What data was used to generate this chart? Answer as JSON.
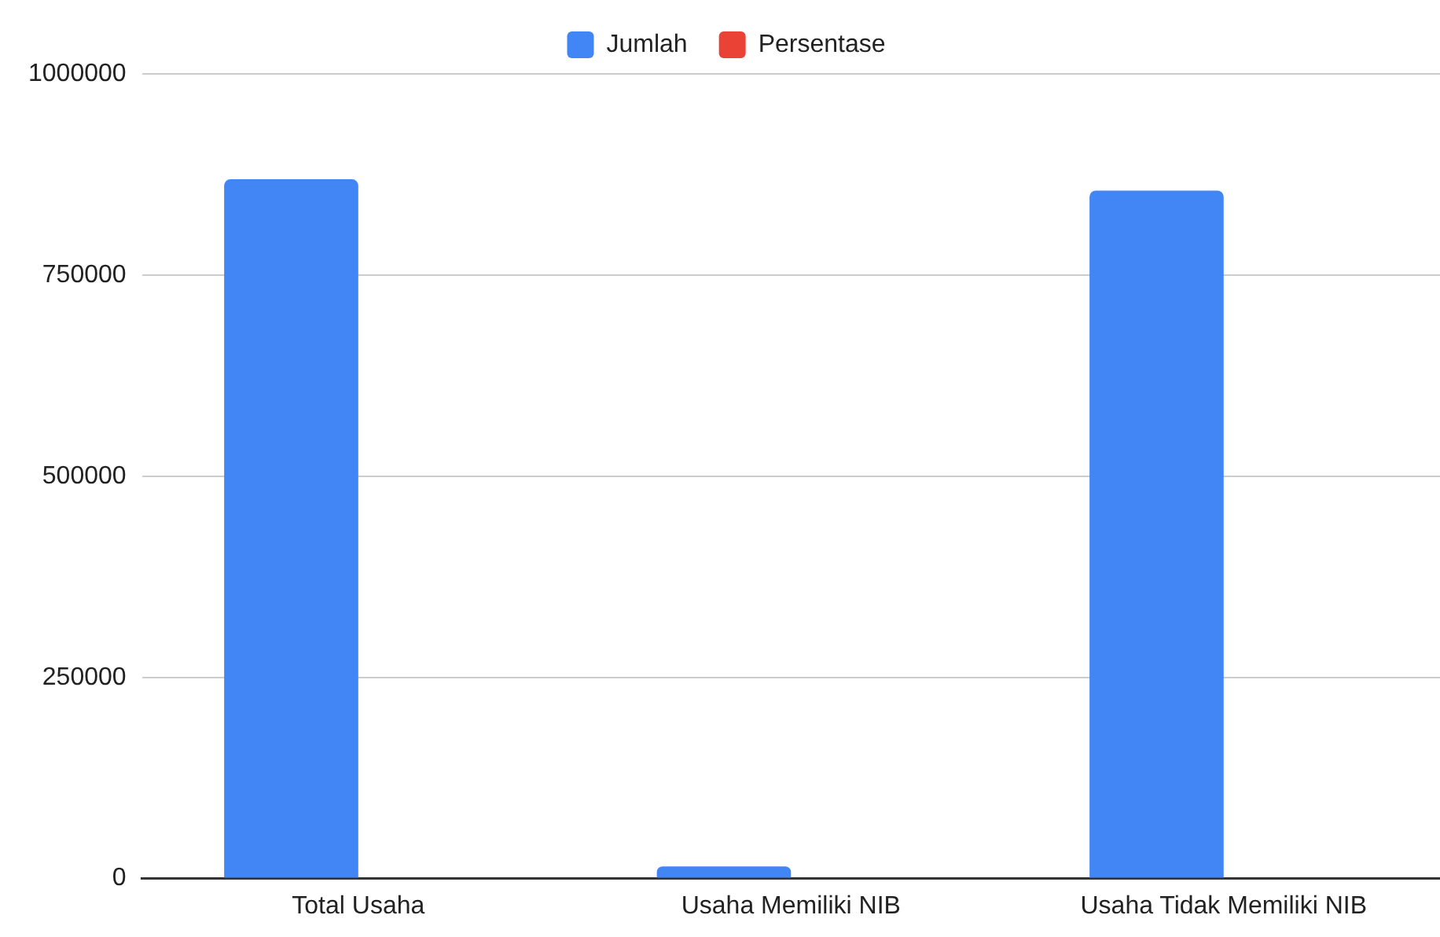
{
  "chart_data": {
    "type": "bar",
    "categories": [
      "Total Usaha",
      "Usaha Memiliki NIB",
      "Usaha Tidak Memiliki NIB"
    ],
    "series": [
      {
        "name": "Jumlah",
        "color": "#4285f4",
        "values": [
          869000,
          15000,
          855000
        ]
      },
      {
        "name": "Persentase",
        "color": "#ea4335",
        "values": [
          null,
          null,
          null
        ]
      }
    ],
    "ylim": [
      0,
      1000000
    ],
    "yticks": [
      0,
      250000,
      500000,
      750000,
      1000000
    ],
    "grid": "y",
    "legend": "top"
  }
}
